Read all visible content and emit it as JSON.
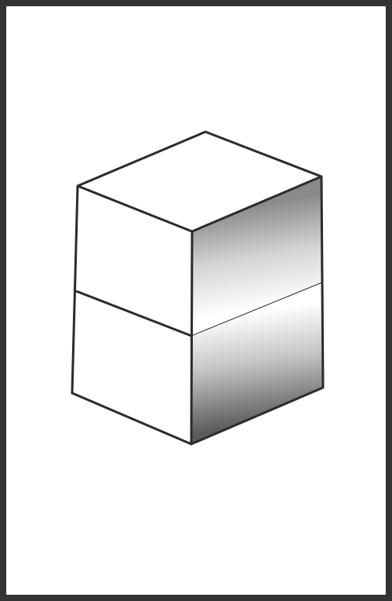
{
  "illustration": {
    "subject": "stacked-boxes",
    "box_count": 2
  },
  "colors": {
    "frame": "#333333",
    "background": "#ffffff",
    "outline": "#2b2b2b",
    "face_light": "#ffffff",
    "shade_dark": "#5a5a5a",
    "shade_mid": "#a8a8a8"
  }
}
